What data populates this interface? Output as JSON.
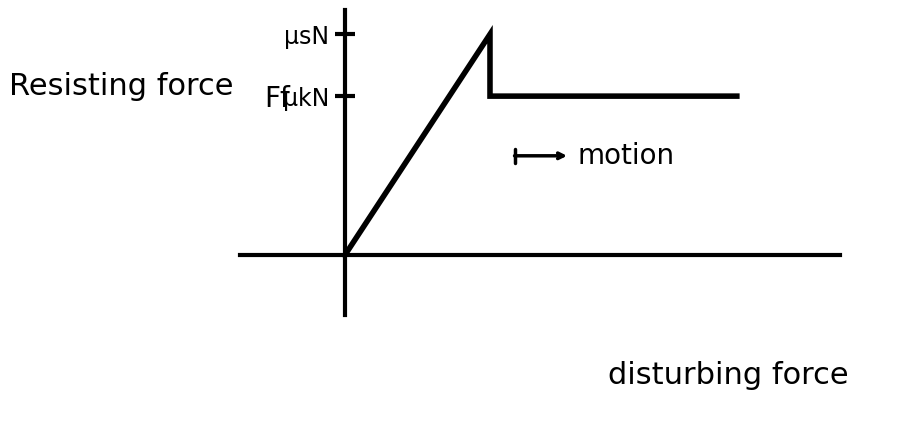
{
  "chart_data": {
    "type": "line",
    "ylabel": "Resisting force",
    "xlabel": "disturbing force",
    "annotations": [
      "Ff",
      "motion"
    ],
    "x": [
      0,
      1,
      1,
      2.7
    ],
    "values": [
      0,
      1,
      0.72,
      0.72
    ],
    "color": "#000000",
    "xlim": [
      -0.72,
      3.41
    ],
    "ylim": [
      -0.27,
      1.11
    ],
    "xticks": [],
    "yticks": [
      {
        "value": 1,
        "label": "μsN"
      },
      {
        "value": 0.72,
        "label": "μkN"
      }
    ],
    "tick_labels": "y"
  }
}
